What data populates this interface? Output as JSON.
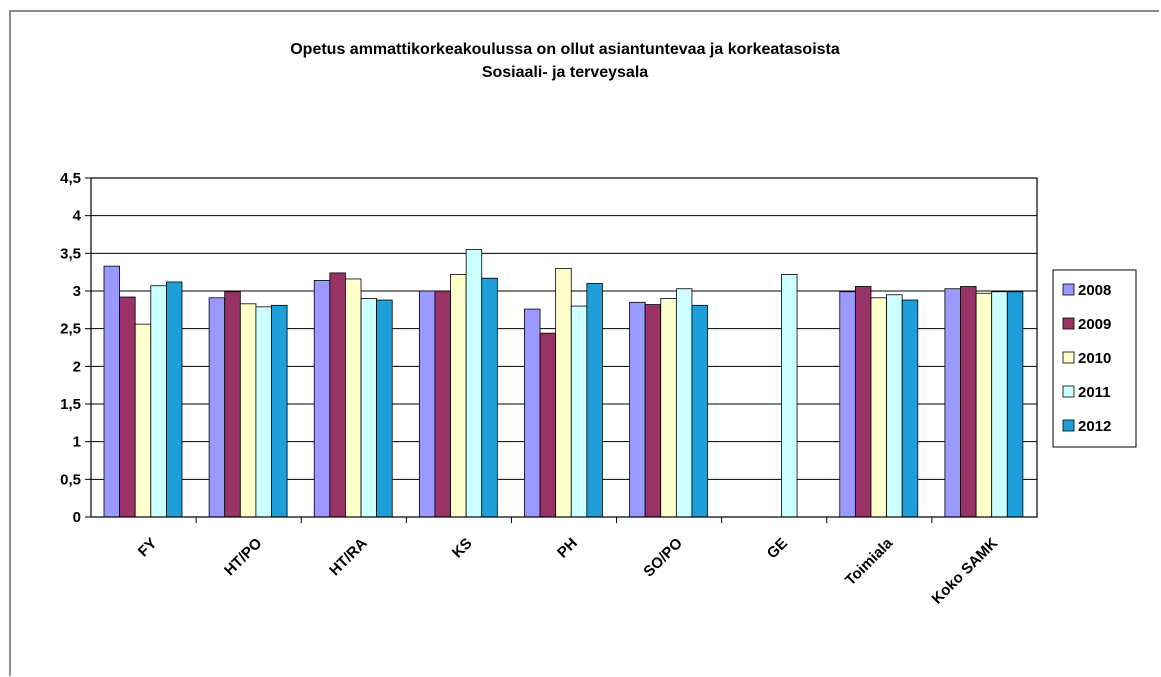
{
  "colors": {
    "2008": "#9999ff",
    "2009": "#993366",
    "2010": "#ffffcc",
    "2011": "#ccffff",
    "2012": "#1e9fd9"
  },
  "chart_data": {
    "type": "bar",
    "title": "Opetus ammattikorkeakoulussa on ollut asiantuntevaa ja korkeatasoista",
    "subtitle": "Sosiaali- ja terveysala",
    "xlabel": "",
    "ylabel": "",
    "ylim": [
      0,
      4.5
    ],
    "yticks": [
      "0",
      "0,5",
      "1",
      "1,5",
      "2",
      "2,5",
      "3",
      "3,5",
      "4",
      "4,5"
    ],
    "grid": true,
    "legend_position": "right",
    "categories": [
      "FY",
      "HT/PO",
      "HT/RA",
      "KS",
      "PH",
      "SO/PO",
      "GE",
      "Toimiala",
      "Koko SAMK"
    ],
    "series": [
      {
        "name": "2008",
        "values": [
          3.33,
          2.91,
          3.14,
          3.0,
          2.76,
          2.85,
          null,
          2.99,
          3.03
        ]
      },
      {
        "name": "2009",
        "values": [
          2.92,
          2.99,
          3.24,
          3.0,
          2.44,
          2.82,
          null,
          3.06,
          3.06
        ]
      },
      {
        "name": "2010",
        "values": [
          2.56,
          2.83,
          3.16,
          3.22,
          3.3,
          2.9,
          null,
          2.91,
          2.97
        ]
      },
      {
        "name": "2011",
        "values": [
          3.07,
          2.79,
          2.9,
          3.55,
          2.8,
          3.03,
          3.22,
          2.95,
          2.99
        ]
      },
      {
        "name": "2012",
        "values": [
          3.12,
          2.81,
          2.88,
          3.17,
          3.1,
          2.81,
          null,
          2.88,
          2.99
        ]
      }
    ]
  }
}
